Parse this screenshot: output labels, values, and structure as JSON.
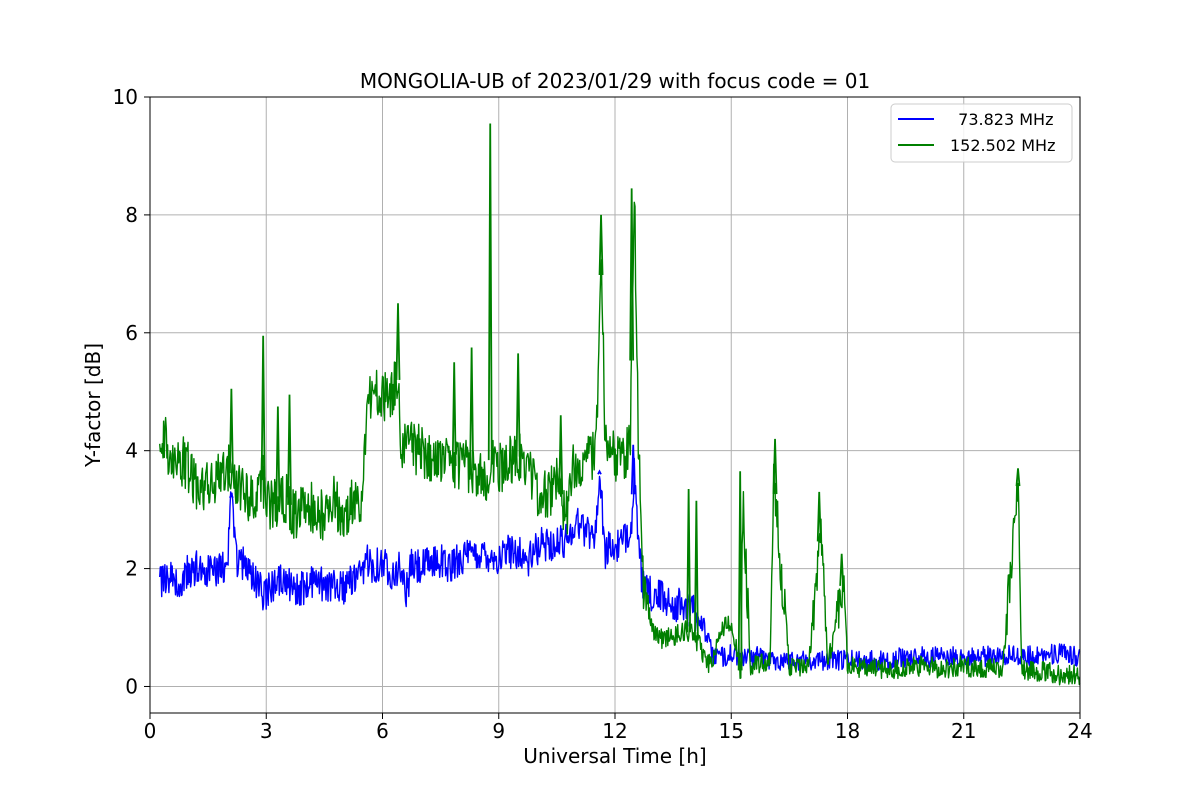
{
  "chart_data": {
    "type": "line",
    "title": "MONGOLIA-UB of 2023/01/29 with focus code = 01",
    "xlabel": "Universal Time [h]",
    "ylabel": "Y-factor [dB]",
    "xlim": [
      0,
      24
    ],
    "ylim": [
      -0.45,
      10
    ],
    "xticks": [
      0,
      3,
      6,
      9,
      12,
      15,
      18,
      21,
      24
    ],
    "xtick_labels": [
      "0",
      "3",
      "6",
      "9",
      "12",
      "15",
      "18",
      "21",
      "24"
    ],
    "yticks": [
      0,
      2,
      4,
      6,
      8,
      10
    ],
    "ytick_labels": [
      "0",
      "2",
      "4",
      "6",
      "8",
      "10"
    ],
    "grid": true,
    "legend_position": "top-right",
    "series": [
      {
        "name": "  73.823 MHz",
        "color": "#0000ff",
        "x": [
          0.25,
          0.5,
          0.75,
          1.0,
          1.25,
          1.5,
          1.75,
          2.0,
          2.1,
          2.25,
          2.5,
          2.75,
          2.9,
          3.0,
          3.25,
          3.5,
          3.75,
          4.0,
          4.25,
          4.5,
          4.75,
          5.0,
          5.25,
          5.5,
          5.6,
          5.75,
          6.0,
          6.25,
          6.5,
          6.6,
          6.75,
          7.0,
          7.25,
          7.5,
          7.75,
          8.0,
          8.25,
          8.5,
          8.75,
          9.0,
          9.25,
          9.5,
          9.75,
          10.0,
          10.25,
          10.5,
          10.75,
          11.0,
          11.25,
          11.5,
          11.6,
          11.75,
          12.0,
          12.25,
          12.45,
          12.5,
          12.6,
          12.75,
          13.0,
          13.25,
          13.5,
          13.75,
          14.0,
          14.25,
          14.5,
          14.75,
          15.0,
          15.25,
          15.5,
          15.75,
          16.0,
          16.5,
          17.0,
          17.5,
          18.0,
          18.5,
          19.0,
          19.5,
          20.0,
          20.5,
          21.0,
          21.5,
          22.0,
          22.5,
          23.0,
          23.5,
          24.0
        ],
        "y": [
          1.75,
          1.85,
          1.8,
          1.95,
          2.05,
          1.95,
          2.0,
          2.1,
          3.2,
          2.1,
          2.05,
          1.8,
          1.55,
          1.6,
          1.75,
          1.8,
          1.65,
          1.7,
          1.85,
          1.7,
          1.75,
          1.7,
          1.8,
          1.85,
          2.2,
          2.05,
          2.1,
          1.95,
          2.0,
          1.55,
          2.05,
          2.0,
          2.1,
          2.15,
          2.0,
          2.2,
          2.2,
          2.25,
          2.25,
          2.15,
          2.3,
          2.3,
          2.1,
          2.35,
          2.45,
          2.4,
          2.5,
          2.8,
          2.65,
          2.6,
          3.6,
          2.3,
          2.35,
          2.45,
          2.9,
          3.8,
          2.3,
          1.6,
          1.55,
          1.5,
          1.4,
          1.35,
          1.3,
          1.1,
          0.55,
          0.5,
          0.55,
          0.5,
          0.5,
          0.5,
          0.45,
          0.45,
          0.45,
          0.45,
          0.45,
          0.45,
          0.45,
          0.5,
          0.5,
          0.5,
          0.5,
          0.5,
          0.55,
          0.5,
          0.55,
          0.55,
          0.5
        ]
      },
      {
        "name": "152.502 MHz",
        "color": "#008000",
        "x": [
          0.25,
          0.4,
          0.5,
          0.75,
          1.0,
          1.25,
          1.5,
          1.75,
          2.0,
          2.25,
          2.5,
          2.75,
          2.9,
          3.0,
          3.25,
          3.5,
          3.75,
          4.0,
          4.25,
          4.5,
          4.75,
          5.0,
          5.25,
          5.5,
          5.6,
          5.75,
          6.0,
          6.25,
          6.4,
          6.5,
          6.75,
          7.0,
          7.25,
          7.5,
          7.75,
          8.0,
          8.3,
          8.5,
          8.75,
          8.8,
          9.0,
          9.25,
          9.5,
          9.75,
          10.0,
          10.25,
          10.5,
          10.75,
          10.9,
          11.0,
          11.25,
          11.5,
          11.65,
          11.75,
          12.0,
          12.25,
          12.4,
          12.5,
          12.6,
          12.75,
          13.0,
          13.25,
          13.5,
          13.75,
          14.0,
          14.25,
          14.5,
          14.75,
          15.0,
          15.25,
          15.3,
          15.5,
          16.0,
          16.1,
          16.5,
          17.0,
          17.3,
          17.5,
          17.9,
          18.0,
          18.5,
          19.0,
          19.5,
          20.0,
          20.5,
          21.0,
          21.5,
          22.0,
          22.4,
          22.5,
          23.0,
          23.5,
          24.0
        ],
        "y": [
          4.0,
          4.3,
          3.9,
          3.9,
          3.7,
          3.3,
          3.4,
          3.5,
          3.7,
          3.5,
          3.2,
          3.3,
          3.6,
          3.1,
          3.1,
          3.2,
          2.9,
          3.1,
          3.0,
          2.9,
          3.2,
          2.8,
          3.2,
          3.2,
          4.8,
          5.0,
          4.9,
          5.0,
          5.2,
          4.0,
          4.05,
          4.0,
          3.8,
          3.9,
          3.7,
          3.8,
          3.7,
          3.5,
          3.6,
          4.0,
          3.7,
          3.8,
          3.9,
          3.8,
          3.3,
          3.2,
          3.5,
          2.9,
          3.8,
          3.8,
          3.9,
          3.9,
          7.2,
          4.0,
          3.9,
          3.9,
          4.3,
          8.4,
          4.2,
          1.5,
          0.9,
          0.8,
          0.85,
          0.95,
          0.9,
          0.6,
          0.3,
          1.0,
          1.1,
          0.2,
          3.2,
          0.35,
          0.4,
          3.5,
          0.35,
          0.3,
          2.7,
          0.35,
          1.9,
          0.35,
          0.3,
          0.3,
          0.3,
          0.35,
          0.3,
          0.35,
          0.3,
          0.3,
          3.4,
          0.3,
          0.25,
          0.2,
          0.2
        ]
      }
    ],
    "spikes": [
      {
        "series": 1,
        "x": 2.1,
        "y": 5.05
      },
      {
        "series": 1,
        "x": 2.92,
        "y": 5.95
      },
      {
        "series": 1,
        "x": 3.3,
        "y": 4.75
      },
      {
        "series": 1,
        "x": 3.6,
        "y": 4.95
      },
      {
        "series": 1,
        "x": 6.4,
        "y": 6.5
      },
      {
        "series": 1,
        "x": 7.85,
        "y": 5.5
      },
      {
        "series": 1,
        "x": 8.3,
        "y": 5.75
      },
      {
        "series": 1,
        "x": 8.78,
        "y": 9.55
      },
      {
        "series": 1,
        "x": 9.5,
        "y": 5.65
      },
      {
        "series": 1,
        "x": 10.6,
        "y": 4.6
      },
      {
        "series": 1,
        "x": 11.64,
        "y": 8.0
      },
      {
        "series": 1,
        "x": 12.43,
        "y": 8.45
      },
      {
        "series": 1,
        "x": 13.9,
        "y": 3.35
      },
      {
        "series": 1,
        "x": 14.1,
        "y": 3.15
      },
      {
        "series": 1,
        "x": 15.23,
        "y": 3.65
      },
      {
        "series": 1,
        "x": 16.13,
        "y": 4.2
      },
      {
        "series": 1,
        "x": 17.27,
        "y": 3.3
      },
      {
        "series": 1,
        "x": 17.85,
        "y": 2.25
      },
      {
        "series": 1,
        "x": 22.4,
        "y": 3.7
      },
      {
        "series": 0,
        "x": 2.1,
        "y": 3.25
      },
      {
        "series": 0,
        "x": 11.6,
        "y": 3.65
      },
      {
        "series": 0,
        "x": 12.47,
        "y": 4.1
      }
    ]
  }
}
